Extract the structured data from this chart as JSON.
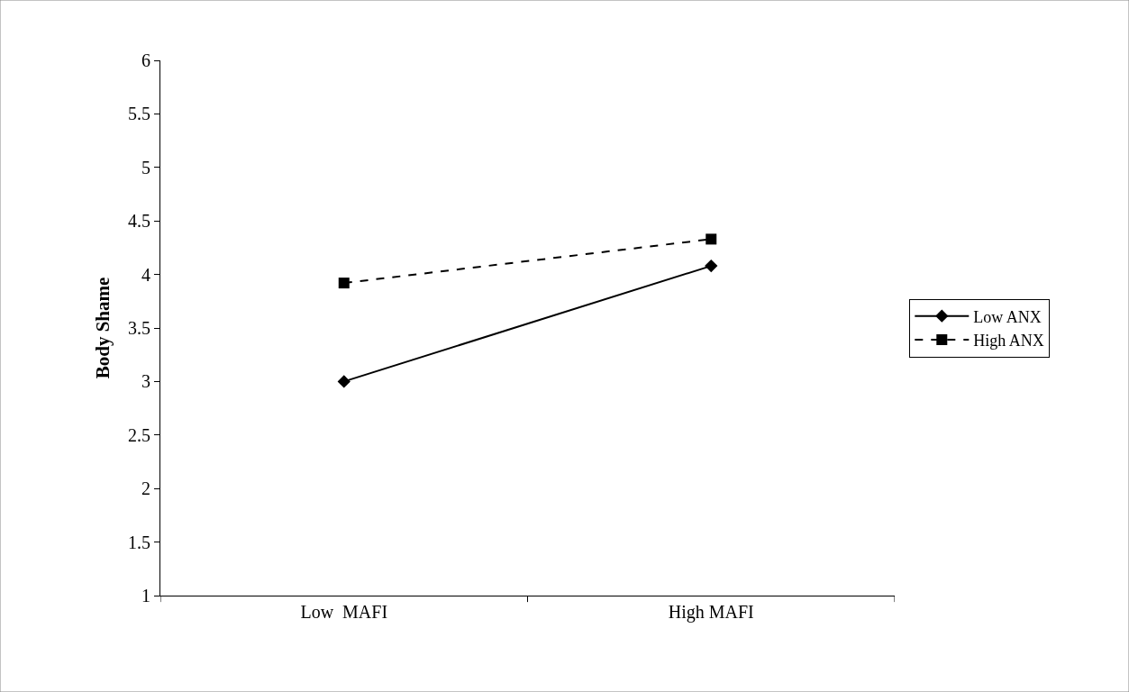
{
  "chart_data": {
    "type": "line",
    "ylabel": "Body Shame",
    "categories": [
      "Low  MAFI",
      "High MAFI"
    ],
    "series": [
      {
        "name": "Low ANX",
        "color": "#000000",
        "values": [
          3.0,
          4.08
        ],
        "marker": "diamond",
        "line_style": "solid"
      },
      {
        "name": "High ANX",
        "color": "#000000",
        "values": [
          3.92,
          4.33
        ],
        "marker": "square",
        "line_style": "dashed"
      }
    ],
    "ylim": [
      1,
      6
    ],
    "yticks": [
      1,
      1.5,
      2,
      2.5,
      3,
      3.5,
      4,
      4.5,
      5,
      5.5,
      6
    ],
    "grid": false,
    "legend": "right"
  }
}
